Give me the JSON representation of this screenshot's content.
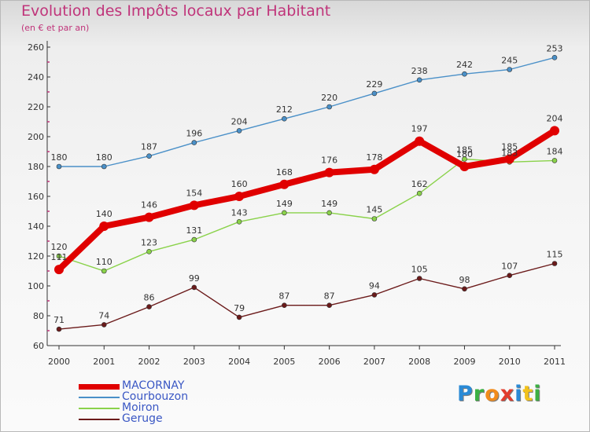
{
  "header": {
    "title": "Evolution des Impôts locaux par Habitant",
    "subtitle": "(en € et par an)"
  },
  "chart_data": {
    "type": "line",
    "title": "Evolution des Impôts locaux par Habitant",
    "subtitle": "(en € et par an)",
    "xlabel": "",
    "ylabel": "",
    "ylim": [
      60,
      260
    ],
    "yticks": [
      60,
      80,
      100,
      120,
      140,
      160,
      180,
      200,
      220,
      240,
      260
    ],
    "grid": false,
    "legend_position": "bottom-left",
    "x": [
      "2000",
      "2001",
      "2002",
      "2003",
      "2004",
      "2005",
      "2006",
      "2007",
      "2008",
      "2009",
      "2010",
      "2011"
    ],
    "series": [
      {
        "name": "Courbouzon",
        "color": "#4a90c8",
        "values": [
          180,
          180,
          187,
          196,
          204,
          212,
          220,
          229,
          238,
          242,
          245,
          253
        ]
      },
      {
        "name": "Moiron",
        "color": "#8ad24a",
        "values": [
          120,
          110,
          123,
          131,
          143,
          149,
          149,
          145,
          162,
          185,
          183,
          184
        ]
      },
      {
        "name": "Geruge",
        "color": "#6b1a1a",
        "values": [
          71,
          74,
          86,
          99,
          79,
          87,
          87,
          94,
          105,
          98,
          107,
          115
        ]
      },
      {
        "name": "MACORNAY",
        "color": "#e00000",
        "values": [
          111,
          140,
          146,
          154,
          160,
          168,
          176,
          178,
          197,
          180,
          185,
          204
        ]
      }
    ]
  },
  "legend": {
    "items": [
      {
        "label": "MACORNAY",
        "color": "#e00000"
      },
      {
        "label": "Courbouzon",
        "color": "#4a90c8"
      },
      {
        "label": "Moiron",
        "color": "#8ad24a"
      },
      {
        "label": "Geruge",
        "color": "#6b1a1a"
      }
    ]
  },
  "logo": {
    "letters": [
      "P",
      "r",
      "o",
      "x",
      "i",
      "t",
      "i"
    ],
    "colors": [
      "#2a8ad6",
      "#3cb043",
      "#f28c1c",
      "#e23c2c",
      "#2a8ad6",
      "#f2c21c",
      "#3cb043"
    ]
  }
}
